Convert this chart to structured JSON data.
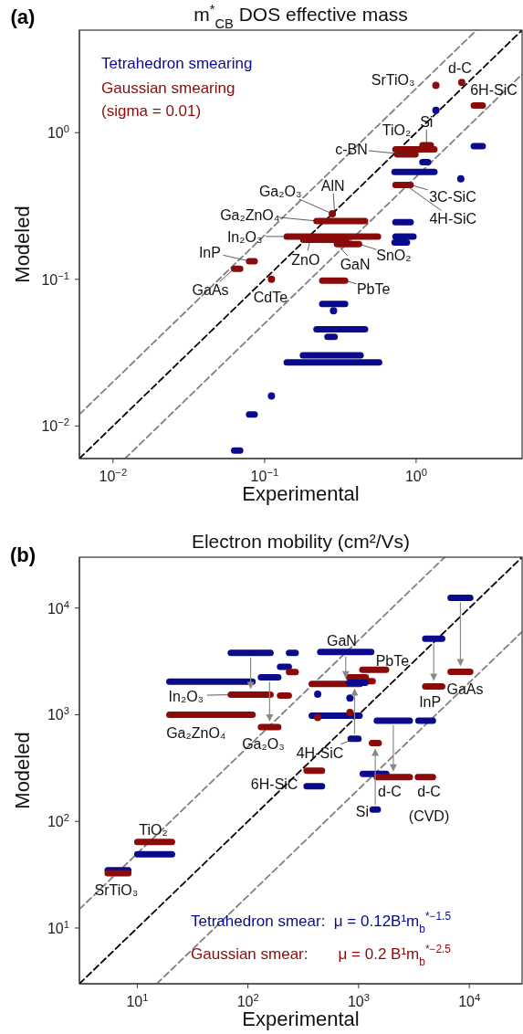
{
  "chart_data": [
    {
      "type": "scatter",
      "title": "m$^{*}$$_{CB}$ DOS effective mass",
      "xlabel": "Experimental",
      "ylabel": "Modeled",
      "log": "xy",
      "legend": "top left",
      "xlim": [
        0.006,
        5
      ],
      "ylim": [
        0.006,
        5
      ],
      "xticks": [
        {
          "value": 0.01,
          "label": "10$^{−2}$"
        },
        {
          "value": 0.1,
          "label": "10$^{−1}$"
        },
        {
          "value": 1,
          "label": "10$^{0}$"
        }
      ],
      "yticks": [
        {
          "value": 0.01,
          "label": "10$^{−2}$"
        },
        {
          "value": 0.1,
          "label": "10$^{−1}$"
        },
        {
          "value": 1,
          "label": "10$^{0}$"
        }
      ],
      "series": [
        {
          "type": "line",
          "color": "#000000",
          "line_style": "dashed",
          "x": [
            0.006,
            5
          ],
          "values": [
            0.006,
            5
          ]
        },
        {
          "type": "line",
          "color": "#808080",
          "line_style": "dashed",
          "x": [
            0.006,
            2.5
          ],
          "values": [
            0.012,
            5
          ]
        },
        {
          "type": "line",
          "color": "#808080",
          "line_style": "dashed",
          "x": [
            0.012,
            5
          ],
          "values": [
            0.006,
            2.5
          ]
        },
        {
          "type": "line",
          "color": "#0a0a8c",
          "x": [
            2.4,
            2.75
          ],
          "values": [
            0.81,
            0.81
          ]
        },
        {
          "type": "line",
          "color": "#0a0a8c",
          "x": [
            1.1,
            1.2
          ],
          "values": [
            0.63,
            0.63
          ]
        },
        {
          "type": "line",
          "color": "#0a0a8c",
          "x": [
            0.72,
            1.32
          ],
          "values": [
            0.54,
            0.54
          ]
        },
        {
          "type": "line",
          "color": "#0a0a8c",
          "x": [
            0.73,
            0.92
          ],
          "values": [
            0.245,
            0.245
          ]
        },
        {
          "type": "line",
          "color": "#0a0a8c",
          "x": [
            0.73,
            0.96
          ],
          "values": [
            0.196,
            0.196
          ]
        },
        {
          "type": "line",
          "color": "#0a0a8c",
          "x": [
            0.72,
            0.87
          ],
          "values": [
            0.178,
            0.178
          ]
        },
        {
          "type": "line",
          "color": "#0a0a8c",
          "x": [
            0.24,
            0.34
          ],
          "values": [
            0.068,
            0.068
          ]
        },
        {
          "type": "line",
          "color": "#0a0a8c",
          "x": [
            0.22,
            0.46
          ],
          "values": [
            0.0457,
            0.0457
          ]
        },
        {
          "type": "line",
          "color": "#0a0a8c",
          "x": [
            0.26,
            0.29
          ],
          "values": [
            0.0405,
            0.0405
          ]
        },
        {
          "type": "line",
          "color": "#0a0a8c",
          "x": [
            0.179,
            0.43
          ],
          "values": [
            0.0303,
            0.0303
          ]
        },
        {
          "type": "line",
          "color": "#0a0a8c",
          "x": [
            0.14,
            0.57
          ],
          "values": [
            0.0271,
            0.0271
          ]
        },
        {
          "type": "line",
          "color": "#0a0a8c",
          "x": [
            0.079,
            0.086
          ],
          "values": [
            0.012,
            0.012
          ]
        },
        {
          "type": "line",
          "color": "#0a0a8c",
          "x": [
            0.063,
            0.069
          ],
          "values": [
            0.0068,
            0.0068
          ]
        },
        {
          "type": "line",
          "color": "#8b0a0a",
          "x": [
            2.4,
            2.75
          ],
          "values": [
            1.53,
            1.53
          ]
        },
        {
          "type": "line",
          "color": "#8b0a0a",
          "x": [
            1.1,
            1.25
          ],
          "values": [
            0.82,
            0.82
          ]
        },
        {
          "type": "line",
          "color": "#8b0a0a",
          "x": [
            0.73,
            1.32
          ],
          "values": [
            0.77,
            0.77
          ]
        },
        {
          "type": "line",
          "color": "#8b0a0a",
          "x": [
            0.75,
            0.99
          ],
          "values": [
            0.71,
            0.71
          ]
        },
        {
          "type": "line",
          "color": "#8b0a0a",
          "x": [
            0.73,
            0.92
          ],
          "values": [
            0.44,
            0.44
          ]
        },
        {
          "type": "line",
          "color": "#8b0a0a",
          "x": [
            0.22,
            0.46
          ],
          "values": [
            0.25,
            0.25
          ]
        },
        {
          "type": "line",
          "color": "#8b0a0a",
          "x": [
            0.14,
            0.56
          ],
          "values": [
            0.196,
            0.196
          ]
        },
        {
          "type": "line",
          "color": "#8b0a0a",
          "x": [
            0.18,
            0.345
          ],
          "values": [
            0.186,
            0.186
          ]
        },
        {
          "type": "line",
          "color": "#8b0a0a",
          "x": [
            0.3,
            0.42
          ],
          "values": [
            0.174,
            0.174
          ]
        },
        {
          "type": "line",
          "color": "#8b0a0a",
          "x": [
            0.079,
            0.086
          ],
          "values": [
            0.133,
            0.133
          ]
        },
        {
          "type": "line",
          "color": "#8b0a0a",
          "x": [
            0.063,
            0.069
          ],
          "values": [
            0.118,
            0.118
          ]
        },
        {
          "type": "line",
          "color": "#8b0a0a",
          "x": [
            0.24,
            0.34
          ],
          "values": [
            0.098,
            0.098
          ]
        },
        {
          "name": "Tetrahedron smearing",
          "marker": "circle",
          "color": "#0a0a8c",
          "x": [
            1.35,
            1.97,
            0.285,
            0.111
          ],
          "values": [
            1.42,
            0.485,
            0.061,
            0.016
          ]
        },
        {
          "name": "Gaussian smearing\n(sigma = 0.01)",
          "marker": "circle",
          "color": "#8b0a0a",
          "x": [
            1.35,
            2.0,
            0.28,
            0.111
          ],
          "values": [
            2.1,
            2.2,
            0.28,
            0.1
          ]
        }
      ],
      "annotations": [
        "(a)",
        {
          "text": "SrTiO₃",
          "x": 1.35,
          "y": 2.1
        },
        {
          "text": "d-C",
          "x": 2.0,
          "y": 2.2
        },
        {
          "text": "6H-SiC",
          "x": 2.57,
          "y": 1.53
        },
        {
          "text": "Si",
          "x": 1.17,
          "y": 0.82
        },
        {
          "text": "TiO₂",
          "x": 0.98,
          "y": 0.77
        },
        {
          "text": "c-BN",
          "x": 0.86,
          "y": 0.71
        },
        {
          "text": "3C-SiC",
          "x": 0.92,
          "y": 0.44
        },
        {
          "text": "4H-SiC",
          "x": 0.85,
          "y": 0.44
        },
        {
          "text": "Ga₂O₃",
          "x": 0.28,
          "y": 0.28
        },
        {
          "text": "AlN",
          "x": 0.29,
          "y": 0.28
        },
        {
          "text": "Ga₂ZnO₄",
          "x": 0.22,
          "y": 0.25
        },
        {
          "text": "In₂O₃",
          "x": 0.14,
          "y": 0.196
        },
        {
          "text": "ZnO",
          "x": 0.2,
          "y": 0.186
        },
        {
          "text": "GaN",
          "x": 0.3,
          "y": 0.174
        },
        {
          "text": "SnO₂",
          "x": 0.42,
          "y": 0.174
        },
        {
          "text": "InP",
          "x": 0.079,
          "y": 0.133
        },
        {
          "text": "GaAs",
          "x": 0.063,
          "y": 0.118
        },
        {
          "text": "CdTe",
          "x": 0.111,
          "y": 0.1
        },
        {
          "text": "PbTe",
          "x": 0.34,
          "y": 0.098
        }
      ]
    },
    {
      "type": "scatter",
      "title": "Electron mobility (cm²/Vs)",
      "xlabel": "Experimental",
      "ylabel": "Modeled",
      "log": "xy",
      "legend": "bottom right",
      "xlim": [
        3,
        30000
      ],
      "ylim": [
        3,
        30000
      ],
      "xticks": [
        {
          "value": 10,
          "label": "10$^{1}$"
        },
        {
          "value": 100,
          "label": "10$^{2}$"
        },
        {
          "value": 1000,
          "label": "10$^{3}$"
        },
        {
          "value": 10000,
          "label": "10$^{4}$"
        }
      ],
      "yticks": [
        {
          "value": 10,
          "label": "10$^{1}$"
        },
        {
          "value": 100,
          "label": "10$^{2}$"
        },
        {
          "value": 1000,
          "label": "10$^{3}$"
        },
        {
          "value": 10000,
          "label": "10$^{4}$"
        }
      ],
      "series": [
        {
          "type": "line",
          "color": "#000000",
          "line_style": "dashed",
          "x": [
            3,
            30000
          ],
          "values": [
            3,
            30000
          ]
        },
        {
          "type": "line",
          "color": "#808080",
          "line_style": "dashed",
          "x": [
            3,
            6000
          ],
          "values": [
            15,
            30000
          ]
        },
        {
          "type": "line",
          "color": "#808080",
          "line_style": "dashed",
          "x": [
            15,
            30000
          ],
          "values": [
            3,
            6000
          ]
        },
        {
          "type": "line",
          "color": "#0a0a8c",
          "x": [
            70,
            160
          ],
          "values": [
            3800,
            3800
          ]
        },
        {
          "type": "line",
          "color": "#0a0a8c",
          "x": [
            19.5,
            110
          ],
          "values": [
            2040,
            2040
          ]
        },
        {
          "type": "line",
          "color": "#0a0a8c",
          "x": [
            131,
            188
          ],
          "values": [
            2240,
            2240
          ]
        },
        {
          "type": "line",
          "color": "#0a0a8c",
          "x": [
            235,
            270
          ],
          "values": [
            3800,
            3800
          ]
        },
        {
          "type": "line",
          "color": "#0a0a8c",
          "x": [
            195,
            234
          ],
          "values": [
            2820,
            2820
          ]
        },
        {
          "type": "line",
          "color": "#0a0a8c",
          "x": [
            450,
            1300
          ],
          "values": [
            3870,
            3870
          ]
        },
        {
          "type": "line",
          "color": "#0a0a8c",
          "x": [
            377,
            1020
          ],
          "values": [
            980,
            980
          ]
        },
        {
          "type": "line",
          "color": "#0a0a8c",
          "x": [
            1460,
            2900
          ],
          "values": [
            880,
            880
          ]
        },
        {
          "type": "line",
          "color": "#0a0a8c",
          "x": [
            3470,
            4690
          ],
          "values": [
            880,
            880
          ]
        },
        {
          "type": "line",
          "color": "#0a0a8c",
          "x": [
            4000,
            5690
          ],
          "values": [
            5170,
            5170
          ]
        },
        {
          "type": "line",
          "color": "#0a0a8c",
          "x": [
            6780,
            10200
          ],
          "values": [
            12500,
            12500
          ]
        },
        {
          "type": "line",
          "color": "#0a0a8c",
          "x": [
            847,
            998
          ],
          "values": [
            596,
            596
          ]
        },
        {
          "type": "line",
          "color": "#0a0a8c",
          "x": [
            339,
            467
          ],
          "values": [
            213,
            213
          ]
        },
        {
          "type": "line",
          "color": "#0a0a8c",
          "x": [
            1090,
            1780
          ],
          "values": [
            279,
            279
          ]
        },
        {
          "type": "line",
          "color": "#0a0a8c",
          "x": [
            1340,
            1490
          ],
          "values": [
            129,
            129
          ]
        },
        {
          "type": "line",
          "color": "#0a0a8c",
          "x": [
            10,
            20.6
          ],
          "values": [
            49,
            49
          ]
        },
        {
          "type": "line",
          "color": "#0a0a8c",
          "x": [
            5.4,
            8.3
          ],
          "values": [
            34.8,
            34.8
          ]
        },
        {
          "type": "line",
          "color": "#8b0a0a",
          "x": [
            70,
            160
          ],
          "values": [
            1540,
            1540
          ]
        },
        {
          "type": "line",
          "color": "#8b0a0a",
          "x": [
            19.5,
            110
          ],
          "values": [
            1000,
            1000
          ]
        },
        {
          "type": "line",
          "color": "#8b0a0a",
          "x": [
            131,
            188
          ],
          "values": [
            765,
            765
          ]
        },
        {
          "type": "line",
          "color": "#8b0a0a",
          "x": [
            235,
            270
          ],
          "values": [
            2510,
            2510
          ]
        },
        {
          "type": "line",
          "color": "#8b0a0a",
          "x": [
            195,
            234
          ],
          "values": [
            1510,
            1510
          ]
        },
        {
          "type": "line",
          "color": "#8b0a0a",
          "x": [
            377,
            1030
          ],
          "values": [
            1940,
            1940
          ]
        },
        {
          "type": "line",
          "color": "#8b0a0a",
          "x": [
            820,
            1160
          ],
          "values": [
            2240,
            2240
          ]
        },
        {
          "type": "line",
          "color": "#8b0a0a",
          "x": [
            1010,
            1340
          ],
          "values": [
            2060,
            2060
          ]
        },
        {
          "type": "line",
          "color": "#8b0a0a",
          "x": [
            1080,
            1770
          ],
          "values": [
            2640,
            2640
          ]
        },
        {
          "type": "line",
          "color": "#8b0a0a",
          "x": [
            4000,
            5690
          ],
          "values": [
            1840,
            1840
          ]
        },
        {
          "type": "line",
          "color": "#8b0a0a",
          "x": [
            6780,
            10200
          ],
          "values": [
            2520,
            2520
          ]
        },
        {
          "type": "line",
          "color": "#8b0a0a",
          "x": [
            1320,
            1520
          ],
          "values": [
            543,
            543
          ]
        },
        {
          "type": "line",
          "color": "#8b0a0a",
          "x": [
            339,
            467
          ],
          "values": [
            299,
            299
          ]
        },
        {
          "type": "line",
          "color": "#8b0a0a",
          "x": [
            1460,
            2900
          ],
          "values": [
            260,
            260
          ]
        },
        {
          "type": "line",
          "color": "#8b0a0a",
          "x": [
            3430,
            4690
          ],
          "values": [
            260,
            260
          ]
        },
        {
          "type": "line",
          "color": "#8b0a0a",
          "x": [
            10,
            20.6
          ],
          "values": [
            64,
            64
          ]
        },
        {
          "type": "line",
          "color": "#8b0a0a",
          "x": [
            5.4,
            8.3
          ],
          "values": [
            32.6,
            32.6
          ]
        },
        {
          "type": "line",
          "color": "#0a0a8c",
          "x": [
            820,
            1150
          ],
          "values": [
            1990,
            1990
          ]
        },
        {
          "name": "Tetrahedron smear:  μ = 0.12B¹m$_{b}$$^{*−1.5}$",
          "marker": "circle",
          "color": "#0a0a8c",
          "x": [
            427,
            836
          ],
          "values": [
            1560,
            1430
          ]
        },
        {
          "name": "Gaussian smear:       μ = 0.2 B¹m$_{b}$$^{*−2.5}$",
          "marker": "circle",
          "color": "#8b0a0a",
          "x": [
            836,
            427
          ],
          "values": [
            1050,
            940
          ]
        }
      ],
      "annotations": [
        "(b)",
        {
          "text": "In₂O₃",
          "x": 70,
          "y": 1540
        },
        {
          "text": "Ga₂ZnO₄",
          "x": 46,
          "y": 1000
        },
        {
          "text": "Ga₂O₃",
          "x": 157,
          "y": 765
        },
        {
          "text": "GaN",
          "x": 760,
          "y": 3870
        },
        {
          "text": "PbTe",
          "x": 1380,
          "y": 2640
        },
        {
          "text": "InP",
          "x": 4770,
          "y": 1840
        },
        {
          "text": "GaAs",
          "x": 8320,
          "y": 2520
        },
        {
          "text": "4H-SiC",
          "x": 920,
          "y": 596
        },
        {
          "text": "6H-SiC",
          "x": 400,
          "y": 213
        },
        {
          "text": "d-C",
          "x": 2060,
          "y": 260
        },
        {
          "text": "d-C\n(CVD)",
          "x": 4010,
          "y": 260
        },
        {
          "text": "Si",
          "x": 1410,
          "y": 129
        },
        {
          "text": "TiO₂",
          "x": 14.5,
          "y": 64
        },
        {
          "text": "SrTiO₃",
          "x": 6.7,
          "y": 34.8
        }
      ]
    }
  ]
}
